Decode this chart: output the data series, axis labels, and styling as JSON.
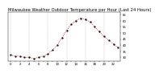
{
  "title": "Milwaukee Weather Outdoor Temperature per Hour (Last 24 Hours)",
  "hours": [
    0,
    1,
    2,
    3,
    4,
    5,
    6,
    7,
    8,
    9,
    10,
    11,
    12,
    13,
    14,
    15,
    16,
    17,
    18,
    19,
    20,
    21,
    22,
    23
  ],
  "temps": [
    32,
    31,
    31,
    30,
    30,
    29,
    30,
    31,
    33,
    36,
    40,
    46,
    52,
    57,
    60,
    62,
    61,
    59,
    55,
    51,
    47,
    44,
    41,
    38
  ],
  "line_color": "#cc0000",
  "marker_color": "#000000",
  "bg_color": "#ffffff",
  "grid_color": "#999999",
  "title_color": "#000000",
  "ylim": [
    27,
    67
  ],
  "yticks": [
    30,
    35,
    40,
    45,
    50,
    55,
    60,
    65
  ],
  "title_fontsize": 3.8,
  "tick_fontsize": 2.8,
  "dpi": 100
}
